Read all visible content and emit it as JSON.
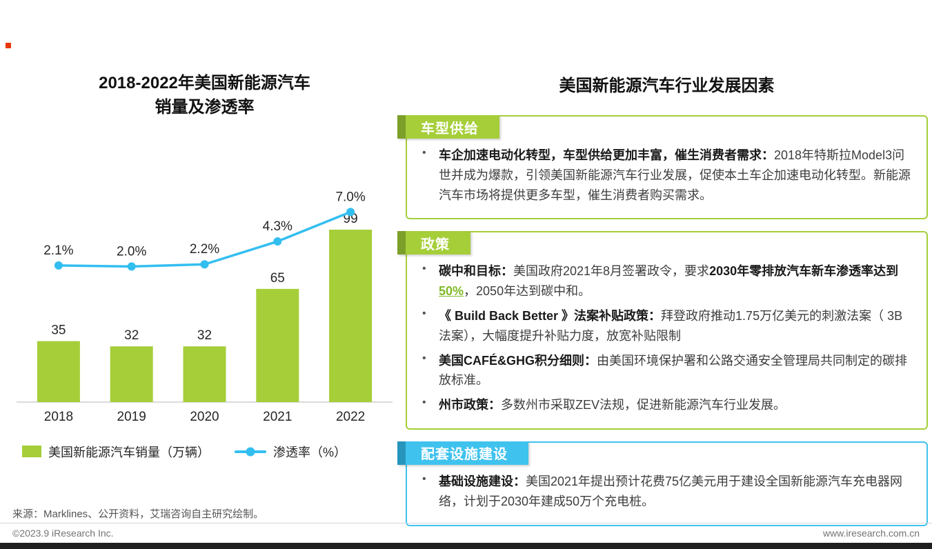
{
  "page": {
    "source": "来源：Marklines、公开资料，艾瑞咨询自主研究绘制。",
    "footer_left": "©2023.9 iResearch Inc.",
    "footer_right": "www.iresearch.com.cn",
    "brand_color": "#e8380d"
  },
  "chart": {
    "title_line1": "2018-2022年美国新能源汽车",
    "title_line2": "销量及渗透率",
    "legend": [
      {
        "label": "美国新能源汽车销量（万辆）",
        "color": "#a5ce39",
        "type": "bar"
      },
      {
        "label": "渗透率（%）",
        "color": "#33bef0",
        "type": "line"
      }
    ]
  },
  "chart_data": {
    "type": "bar",
    "title": "2018-2022年美国新能源汽车销量及渗透率",
    "categories": [
      "2018",
      "2019",
      "2020",
      "2021",
      "2022"
    ],
    "series": [
      {
        "name": "美国新能源汽车销量（万辆）",
        "type": "bar",
        "values": [
          35,
          32,
          32,
          65,
          99
        ],
        "unit": "万辆",
        "color": "#a5ce39"
      },
      {
        "name": "渗透率（%）",
        "type": "line",
        "values": [
          2.1,
          2.0,
          2.2,
          4.3,
          7.0
        ],
        "unit": "%",
        "color": "#33bef0"
      }
    ],
    "value_labels": true,
    "grid": false,
    "legend_position": "bottom"
  },
  "panel": {
    "title": "美国新能源汽车行业发展因素",
    "highlight_color": "#7fb927",
    "sections": [
      {
        "header": "车型供给",
        "accent": "#a5ce39",
        "accent_dark": "#7c9f2a",
        "bullets": [
          [
            {
              "t": "车企加速电动化转型，车型供给更加丰富，催生消费者需求：",
              "b": true
            },
            {
              "t": "2018年特斯拉Model3问世并成为爆款，引领美国新能源汽车行业发展，促使本土车企加速电动化转型。新能源汽车市场将提供更多车型，催生消费者购买需求。"
            }
          ]
        ]
      },
      {
        "header": "政策",
        "accent": "#a5ce39",
        "accent_dark": "#7c9f2a",
        "bullets": [
          [
            {
              "t": "碳中和目标：",
              "b": true
            },
            {
              "t": "美国政府2021年8月签署政令，要求"
            },
            {
              "t": "2030年零排放汽车新车渗透率达到",
              "b": true
            },
            {
              "t": "50%",
              "b": true,
              "hl": true
            },
            {
              "t": "，2050年达到碳中和。"
            }
          ],
          [
            {
              "t": "《 Build Back Better 》法案补贴政策：",
              "b": true
            },
            {
              "t": "拜登政府推动1.75万亿美元的刺激法案（ 3B法案），大幅度提升补贴力度，放宽补贴限制"
            }
          ],
          [
            {
              "t": "美国CAFÉ&GHG积分细则：",
              "b": true
            },
            {
              "t": "由美国环境保护署和公路交通安全管理局共同制定的碳排放标准。"
            }
          ],
          [
            {
              "t": "州市政策：",
              "b": true
            },
            {
              "t": "多数州市采取ZEV法规，促进新能源汽车行业发展。"
            }
          ]
        ]
      },
      {
        "header": "配套设施建设",
        "accent": "#3fc2ee",
        "accent_dark": "#2795bc",
        "bullets": [
          [
            {
              "t": "基础设施建设：",
              "b": true
            },
            {
              "t": "美国2021年提出预计花费75亿美元用于建设全国新能源汽车充电器网络，计划于2030年建成50万个充电桩。"
            }
          ]
        ]
      }
    ]
  }
}
